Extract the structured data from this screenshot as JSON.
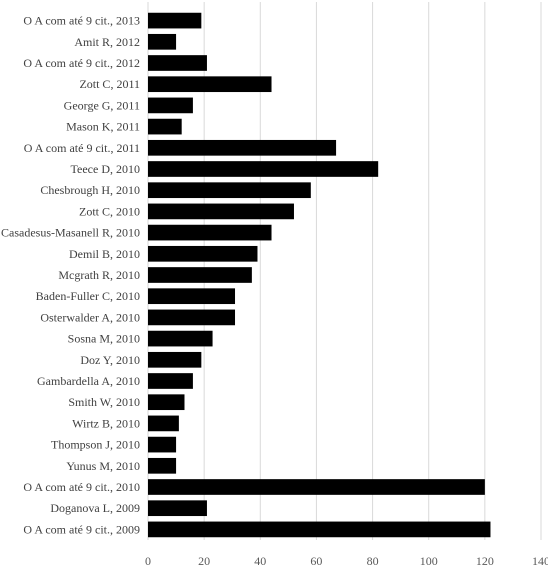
{
  "chart_data": {
    "type": "bar",
    "orientation": "horizontal",
    "title": "",
    "xlabel": "",
    "ylabel": "",
    "categories": [
      "O A com até 9 cit., 2013",
      "Amit R, 2012",
      "O A com até 9 cit., 2012",
      "Zott C, 2011",
      "George G, 2011",
      "Mason K, 2011",
      "O A com até 9 cit., 2011",
      "Teece D, 2010",
      "Chesbrough H, 2010",
      "Zott C, 2010",
      "Casadesus-Masanell R, 2010",
      "Demil B, 2010",
      "Mcgrath R, 2010",
      "Baden-Fuller C, 2010",
      "Osterwalder A, 2010",
      "Sosna M, 2010",
      "Doz Y, 2010",
      "Gambardella A, 2010",
      "Smith W, 2010",
      "Wirtz B, 2010",
      "Thompson J, 2010",
      "Yunus M, 2010",
      "O A com até 9 cit., 2010",
      "Doganova L, 2009",
      "O A com até 9 cit., 2009"
    ],
    "values": [
      19,
      10,
      21,
      44,
      16,
      12,
      67,
      82,
      58,
      52,
      44,
      39,
      37,
      31,
      31,
      23,
      19,
      16,
      13,
      11,
      10,
      10,
      120,
      21,
      122
    ],
    "xlim": [
      0,
      140
    ],
    "xticks": [
      "0",
      "20",
      "40",
      "60",
      "80",
      "100",
      "120",
      "140"
    ],
    "grid": "vertical",
    "bar_color": "#000000",
    "grid_color": "#d9d9d9"
  }
}
